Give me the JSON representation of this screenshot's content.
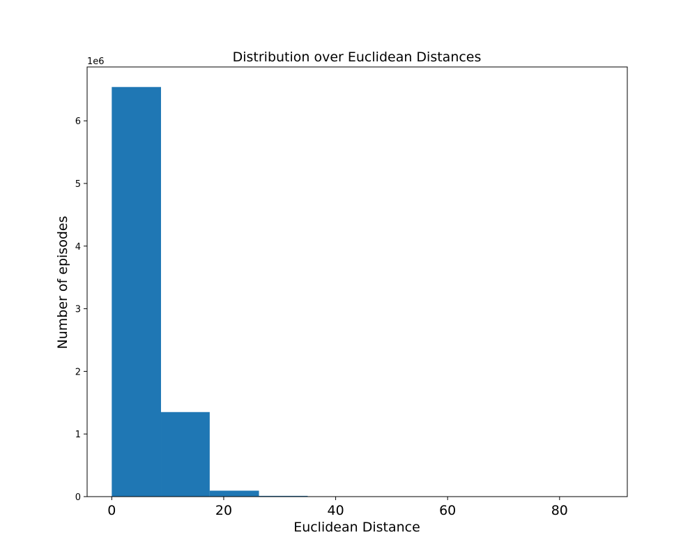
{
  "chart_data": {
    "type": "bar",
    "title": "Distribution over Euclidean Distances",
    "xlabel": "Euclidean Distance",
    "ylabel": "Number of episodes",
    "y_offset_label": "1e6",
    "bar_color": "#1f77b4",
    "xlim": [
      -4.4,
      92.1
    ],
    "ylim": [
      0,
      6.86
    ],
    "x_ticks": [
      "0",
      "20",
      "40",
      "60",
      "80"
    ],
    "x_tick_values": [
      0,
      20,
      40,
      60,
      80
    ],
    "y_ticks": [
      "0",
      "1",
      "2",
      "3",
      "4",
      "5",
      "6"
    ],
    "y_tick_values": [
      0,
      1,
      2,
      3,
      4,
      5,
      6
    ],
    "bins": [
      {
        "x0": 0.0,
        "x1": 8.8,
        "value": 6.54
      },
      {
        "x0": 8.8,
        "x1": 17.5,
        "value": 1.35
      },
      {
        "x0": 17.5,
        "x1": 26.3,
        "value": 0.095
      },
      {
        "x0": 26.3,
        "x1": 35.0,
        "value": 0.012
      },
      {
        "x0": 35.0,
        "x1": 43.8,
        "value": 0.002
      },
      {
        "x0": 43.8,
        "x1": 52.5,
        "value": 0.0005
      },
      {
        "x0": 52.5,
        "x1": 61.3,
        "value": 0.0002
      },
      {
        "x0": 61.3,
        "x1": 70.0,
        "value": 0.0001
      },
      {
        "x0": 70.0,
        "x1": 78.8,
        "value": 0.0
      },
      {
        "x0": 78.8,
        "x1": 87.5,
        "value": 0.0
      }
    ]
  }
}
